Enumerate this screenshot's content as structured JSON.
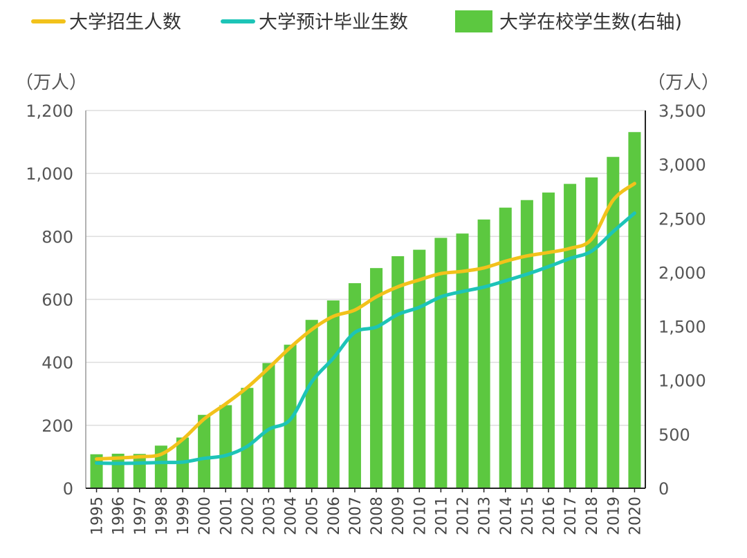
{
  "chart_data": {
    "type": "bar",
    "title": "",
    "legend_position": "top",
    "y_left_unit": "（万人）",
    "y_right_unit": "（万人）",
    "y_left_lim": [
      0,
      1200
    ],
    "y_right_lim": [
      0,
      3500
    ],
    "y_left_ticks": [
      "0",
      "200",
      "400",
      "600",
      "800",
      "1,000",
      "1,200"
    ],
    "y_right_ticks": [
      "0",
      "500",
      "1,000",
      "1,500",
      "2,000",
      "2,500",
      "3,000",
      "3,500"
    ],
    "grid": true,
    "categories": [
      "1995",
      "1996",
      "1997",
      "1998",
      "1999",
      "2000",
      "2001",
      "2002",
      "2003",
      "2004",
      "2005",
      "2006",
      "2007",
      "2008",
      "2009",
      "2010",
      "2011",
      "2012",
      "2013",
      "2014",
      "2015",
      "2016",
      "2017",
      "2018",
      "2019",
      "2020"
    ],
    "series": [
      {
        "name": "大学招生人数",
        "type": "line",
        "axis": "left",
        "color": "#F2C21B",
        "values": [
          93,
          96,
          100,
          108,
          155,
          220,
          268,
          320,
          382,
          447,
          504,
          546,
          566,
          608,
          640,
          662,
          682,
          689,
          700,
          721,
          738,
          749,
          762,
          791,
          915,
          968
        ]
      },
      {
        "name": "大学预计毕业生数",
        "type": "line",
        "axis": "left",
        "color": "#1DC4B7",
        "values": [
          80,
          79,
          80,
          82,
          83,
          95,
          104,
          133,
          187,
          218,
          338,
          413,
          495,
          512,
          552,
          575,
          608,
          625,
          639,
          659,
          680,
          704,
          730,
          753,
          815,
          874
        ]
      },
      {
        "name": "大学在校学生数(右轴)",
        "type": "bar",
        "axis": "right",
        "color": "#5CC840",
        "values": [
          315,
          320,
          318,
          395,
          470,
          680,
          770,
          930,
          1160,
          1330,
          1560,
          1740,
          1900,
          2040,
          2150,
          2210,
          2320,
          2360,
          2490,
          2600,
          2670,
          2740,
          2820,
          2880,
          3070,
          3300
        ]
      }
    ]
  }
}
